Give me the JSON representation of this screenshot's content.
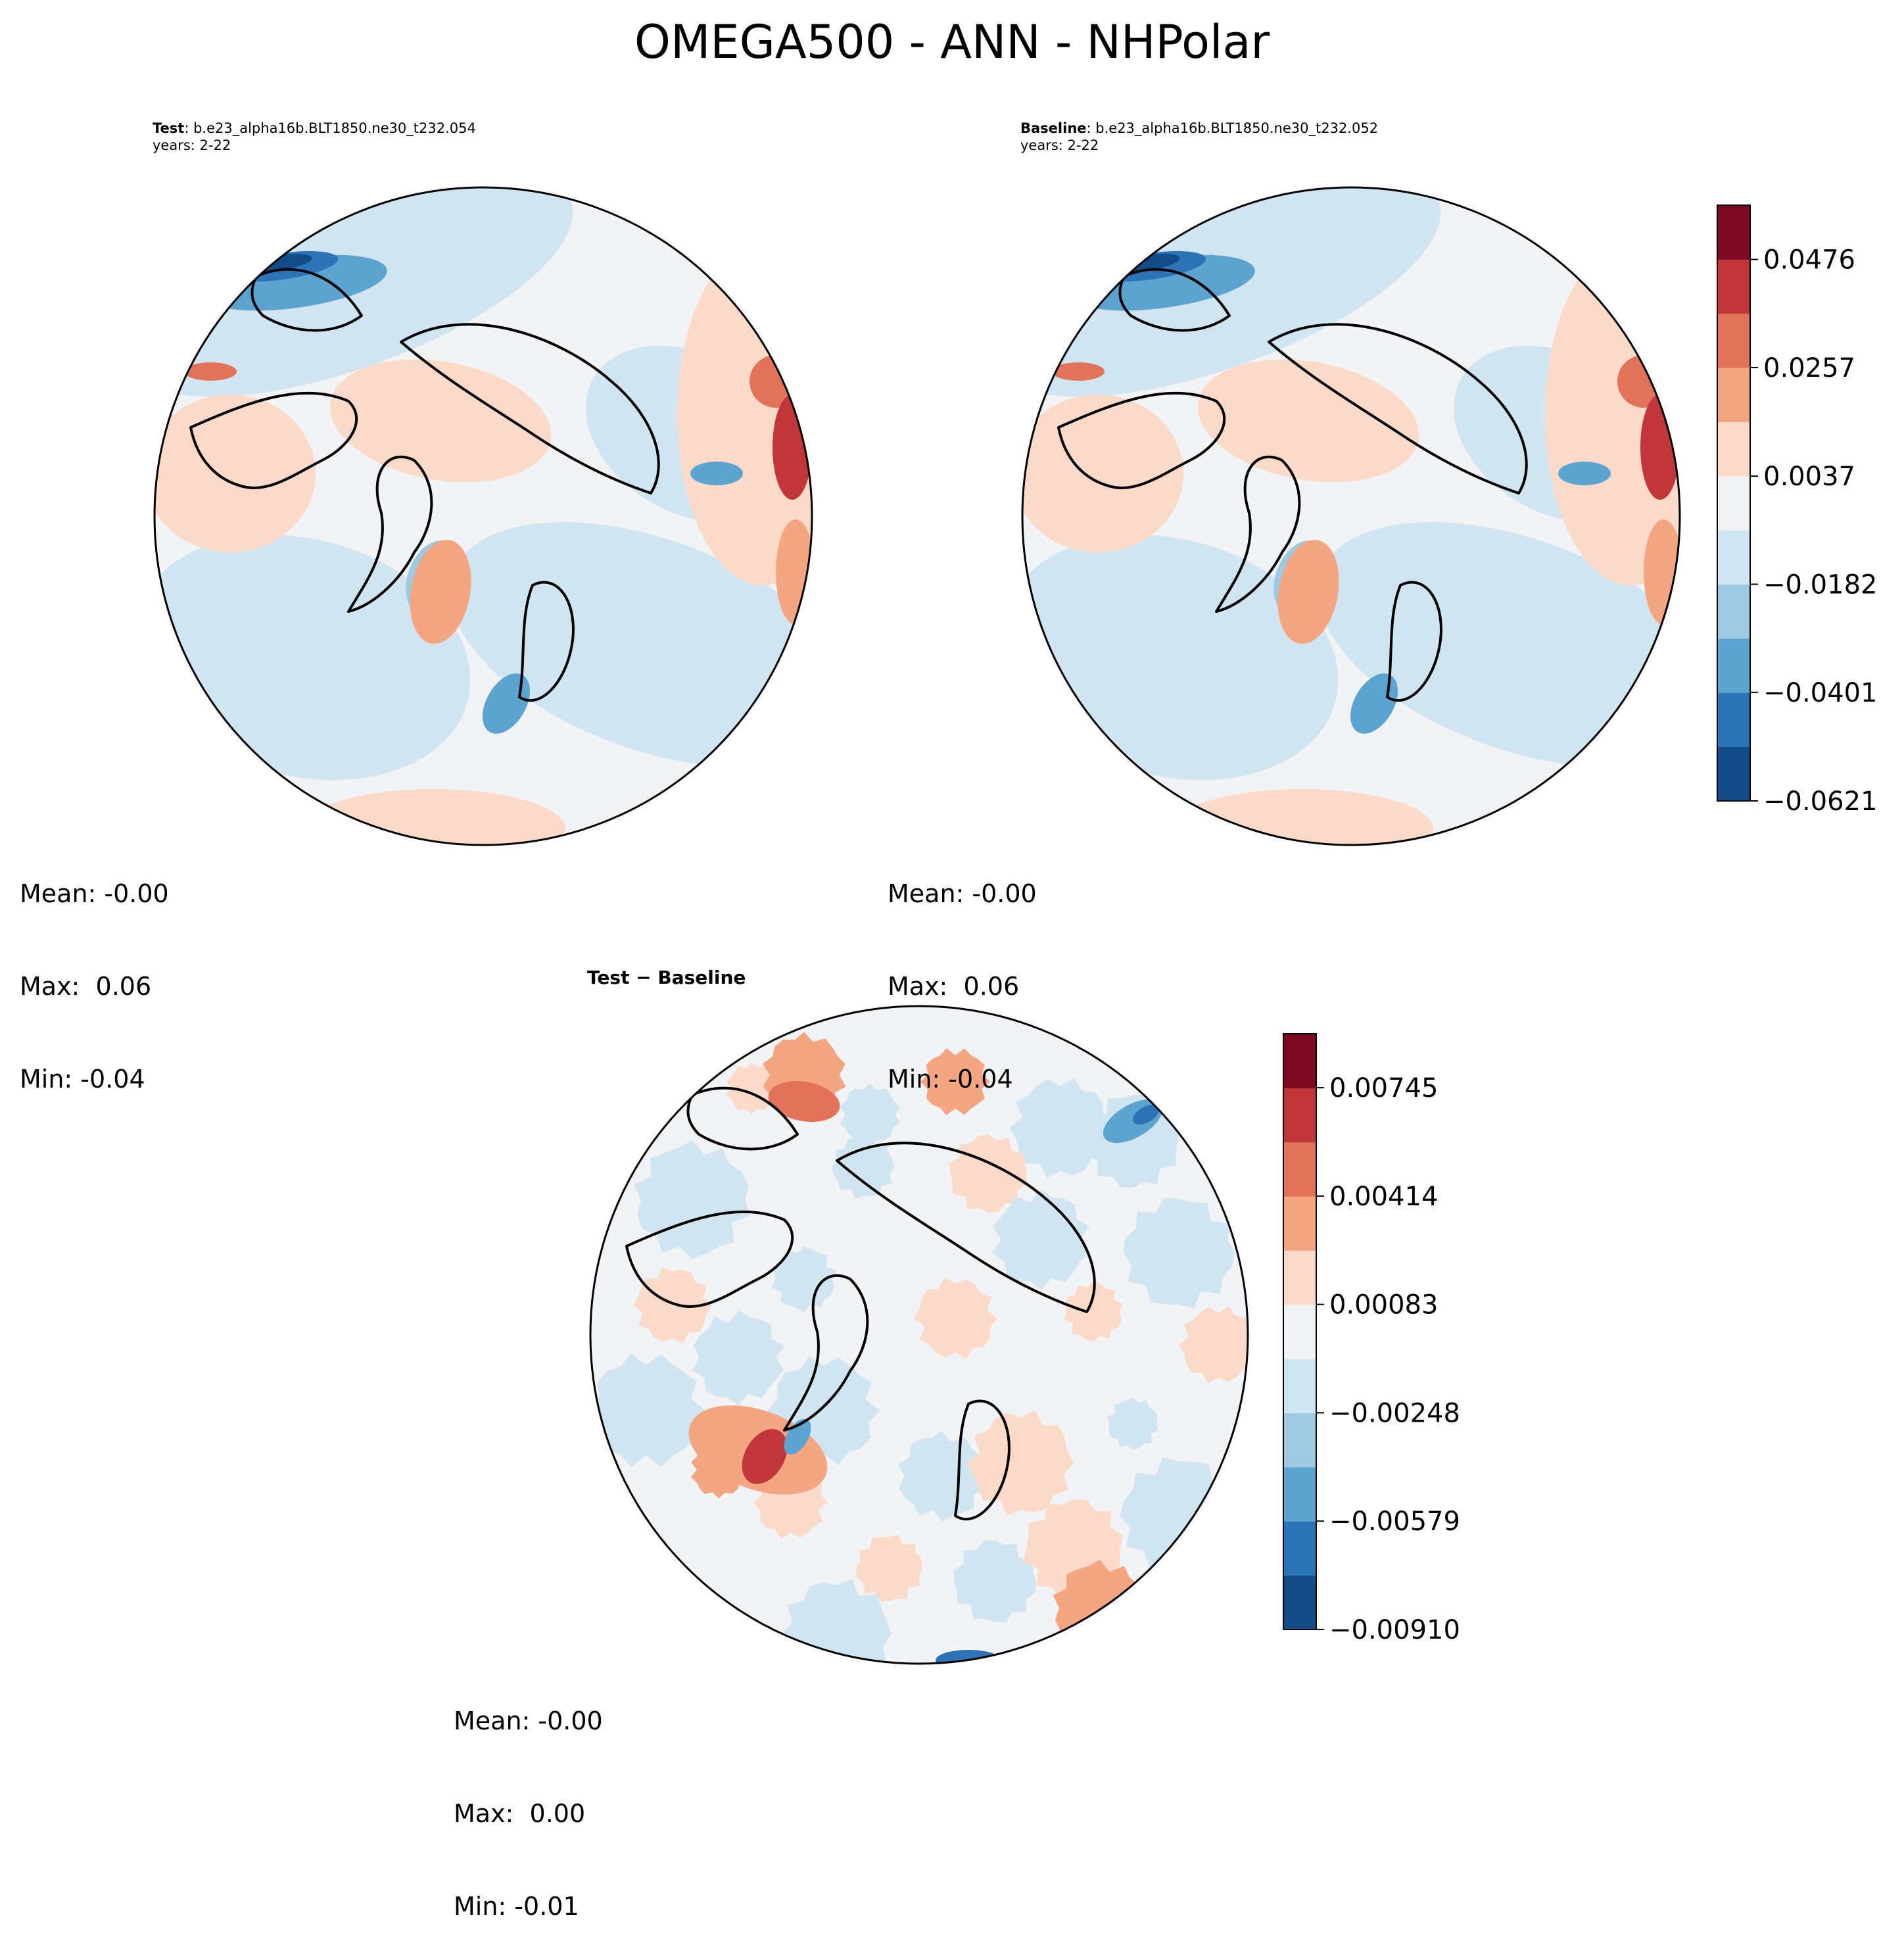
{
  "figure": {
    "title": "OMEGA500 - ANN - NHPolar"
  },
  "panels": [
    {
      "id": "test",
      "label_bold": "Test",
      "label_rest": ": b.e23_alpha16b.BLT1850.ne30_t232.054",
      "subtitle": "years: 2-22",
      "stats": {
        "mean": "Mean: -0.00",
        "max": "Max:  0.06",
        "min": "Min: -0.04"
      }
    },
    {
      "id": "baseline",
      "label_bold": "Baseline",
      "label_rest": ": b.e23_alpha16b.BLT1850.ne30_t232.052",
      "subtitle": "years: 2-22",
      "stats": {
        "mean": "Mean: -0.00",
        "max": "Max:  0.06",
        "min": "Min: -0.04"
      }
    },
    {
      "id": "diff",
      "label_bold": "Test − Baseline",
      "stats": {
        "mean": "Mean: -0.00",
        "max": "Max:  0.00",
        "min": "Min: -0.01"
      }
    }
  ],
  "colorbars": {
    "main": {
      "tick_labels": [
        "0.0476",
        "0.0257",
        "0.0037",
        "−0.0182",
        "−0.0401",
        "−0.0621"
      ],
      "levels": [
        -0.0621,
        -0.0511,
        -0.0401,
        -0.0292,
        -0.0182,
        -0.0072,
        0.0037,
        0.0147,
        0.0257,
        0.0366,
        0.0476,
        0.0586
      ]
    },
    "diff": {
      "tick_labels": [
        "0.00745",
        "0.00414",
        "0.00083",
        "−0.00248",
        "−0.00579",
        "−0.00910"
      ],
      "levels": [
        -0.0091,
        -0.00745,
        -0.00579,
        -0.00414,
        -0.00248,
        -0.00083,
        0.00083,
        0.00248,
        0.00414,
        0.00579,
        0.00745,
        0.0091
      ]
    }
  },
  "colormap": {
    "name": "RdBu_r",
    "colors": [
      "#134c87",
      "#2c74b5",
      "#5da3d0",
      "#9dcae1",
      "#d1e5f0",
      "#f2f3f4",
      "#fbdac9",
      "#f4a582",
      "#e0735a",
      "#c13639",
      "#7c0a22"
    ]
  }
}
